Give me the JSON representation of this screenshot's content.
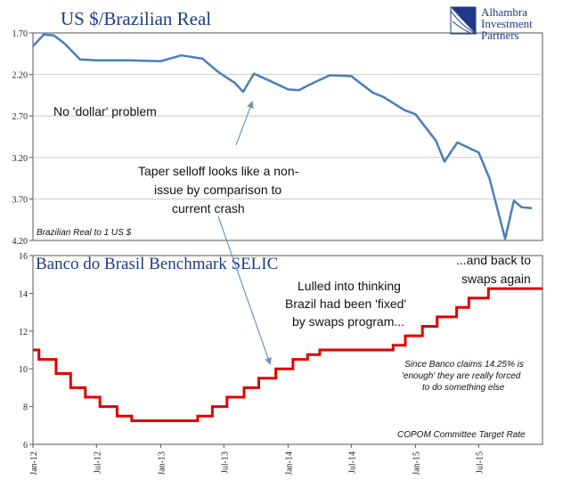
{
  "chart_data": [
    {
      "type": "line",
      "title": "US $/Brazilian Real",
      "ylabel": "Brazilian Real to 1 US $",
      "y_inverted": true,
      "ylim": [
        1.7,
        4.2
      ],
      "yticks": [
        "1.70",
        "2.20",
        "2.70",
        "3.20",
        "3.70",
        "4.20"
      ],
      "color": "#4a7ebb",
      "series": [
        {
          "x": [
            "2012-01-01",
            "2012-02-01",
            "2012-03-01",
            "2012-04-01",
            "2012-05-15",
            "2012-07-01",
            "2012-10-01",
            "2013-01-01",
            "2013-03-01",
            "2013-05-01",
            "2013-06-15",
            "2013-08-01",
            "2013-08-25",
            "2013-09-25",
            "2013-11-01",
            "2014-01-01",
            "2014-02-01",
            "2014-03-15",
            "2014-05-01",
            "2014-07-01",
            "2014-09-01",
            "2014-10-01",
            "2014-12-01",
            "2015-01-01",
            "2015-03-01",
            "2015-03-25",
            "2015-05-01",
            "2015-07-01",
            "2015-08-01",
            "2015-09-15",
            "2015-10-10",
            "2015-11-01",
            "2015-12-01"
          ],
          "y": [
            1.86,
            1.72,
            1.73,
            1.83,
            2.02,
            2.03,
            2.03,
            2.04,
            1.97,
            2.01,
            2.17,
            2.3,
            2.41,
            2.19,
            2.26,
            2.38,
            2.39,
            2.3,
            2.21,
            2.22,
            2.42,
            2.47,
            2.63,
            2.68,
            3.0,
            3.25,
            3.02,
            3.14,
            3.45,
            4.18,
            3.72,
            3.8,
            3.81
          ]
        }
      ]
    },
    {
      "type": "line",
      "title": "Banco do Brasil Benchmark SELIC",
      "step": true,
      "ylim": [
        6,
        16
      ],
      "yticks": [
        "6",
        "8",
        "10",
        "12",
        "14",
        "16"
      ],
      "color": "#e00000",
      "series": [
        {
          "x": [
            "2012-01-01",
            "2012-01-18",
            "2012-03-07",
            "2012-04-18",
            "2012-05-30",
            "2012-07-11",
            "2012-08-29",
            "2012-10-10",
            "2013-04-17",
            "2013-05-29",
            "2013-07-10",
            "2013-08-28",
            "2013-10-09",
            "2013-11-27",
            "2014-01-15",
            "2014-02-26",
            "2014-04-02",
            "2014-10-29",
            "2014-12-03",
            "2015-01-21",
            "2015-03-04",
            "2015-04-29",
            "2015-06-03",
            "2015-07-29",
            "2015-12-31"
          ],
          "y": [
            11.0,
            10.5,
            9.75,
            9.0,
            8.5,
            8.0,
            7.5,
            7.25,
            7.5,
            8.0,
            8.5,
            9.0,
            9.5,
            10.0,
            10.5,
            10.75,
            11.0,
            11.25,
            11.75,
            12.25,
            12.75,
            13.25,
            13.75,
            14.25,
            14.25
          ]
        }
      ]
    }
  ],
  "x_axis": {
    "min": "2012-01-01",
    "max": "2015-12-31",
    "tick_labels": [
      {
        "label": "Jan-12",
        "date": "2012-01-01"
      },
      {
        "label": "Jul-12",
        "date": "2012-07-01"
      },
      {
        "label": "Jan-13",
        "date": "2013-01-01"
      },
      {
        "label": "Jul-13",
        "date": "2013-07-01"
      },
      {
        "label": "Jan-14",
        "date": "2014-01-01"
      },
      {
        "label": "Jul-14",
        "date": "2014-07-01"
      },
      {
        "label": "Jan-15",
        "date": "2015-01-01"
      },
      {
        "label": "Jul-15",
        "date": "2015-07-01"
      }
    ]
  },
  "annotations": {
    "no_dollar": "No 'dollar' problem",
    "taper_line1": "Taper selloff looks like a non-",
    "taper_line2": "issue by comparison to",
    "taper_line3": "current crash",
    "lulled_line1": "Lulled into thinking",
    "lulled_line2": "Brazil had been 'fixed'",
    "lulled_line3": "by swaps program...",
    "back_line1": "...and back to",
    "back_line2": "swaps again",
    "banco_line1": "Since Banco claims 14.25% is",
    "banco_line2": "'enough' they are really forced",
    "banco_line3": "to do something else",
    "copom": "COPOM Committee Target Rate"
  },
  "logo": {
    "line1": "Alhambra",
    "line2": "Investment",
    "line3": "Partners"
  }
}
